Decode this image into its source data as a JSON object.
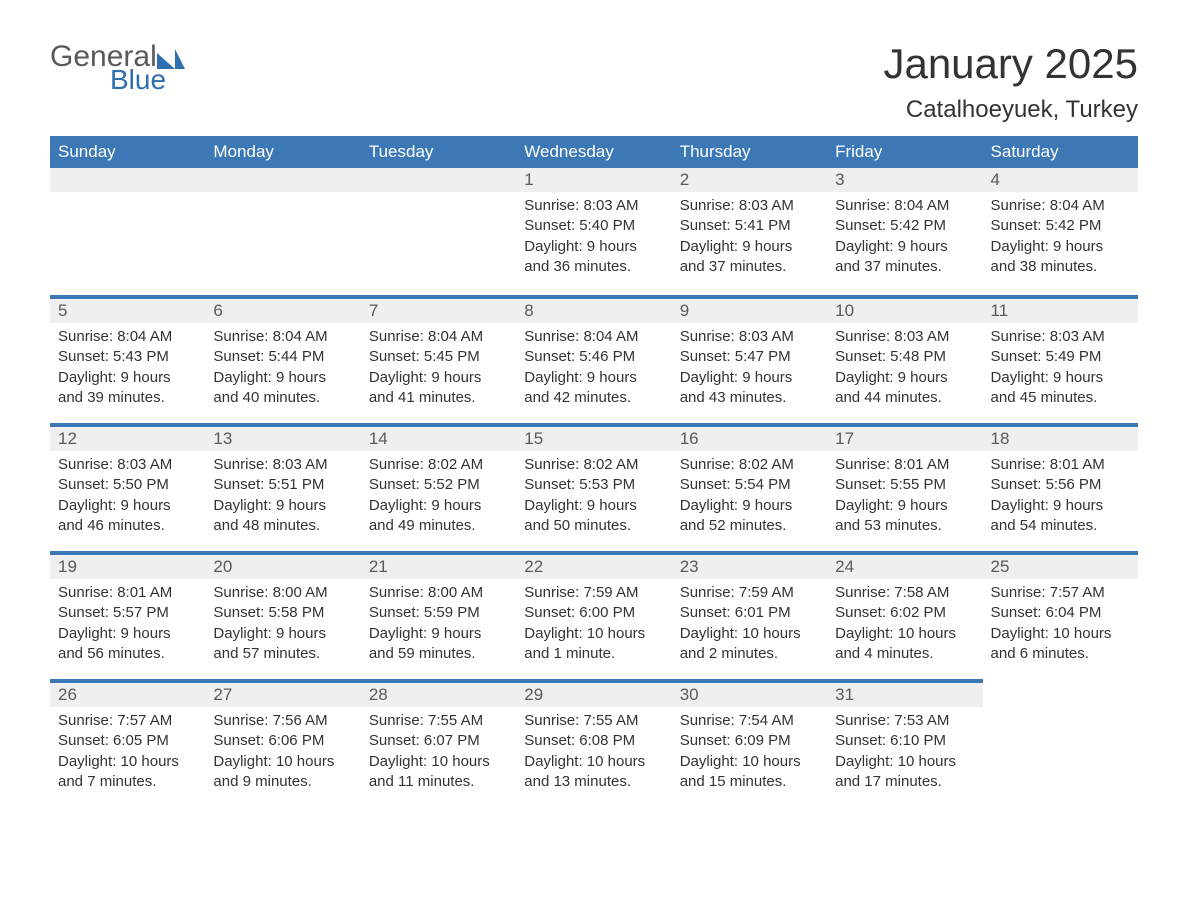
{
  "logo": {
    "text1": "General",
    "text2": "Blue",
    "shape_color": "#2f6fb0",
    "text1_color": "#5a5a5a"
  },
  "title": "January 2025",
  "location": "Catalhoeyuek, Turkey",
  "colors": {
    "header_bg": "#3b78b5",
    "header_text": "#ffffff",
    "row_border": "#3b78b5",
    "daynum_bg": "#efefef",
    "daynum_text": "#5a5a5a",
    "body_text": "#333333",
    "page_bg": "#ffffff"
  },
  "typography": {
    "title_fontsize": 42,
    "location_fontsize": 24,
    "header_fontsize": 17,
    "daynum_fontsize": 17,
    "body_fontsize": 15,
    "font_family": "Arial"
  },
  "layout": {
    "columns": 7,
    "rows": 5,
    "first_weekday": "Sunday"
  },
  "weekdays": [
    "Sunday",
    "Monday",
    "Tuesday",
    "Wednesday",
    "Thursday",
    "Friday",
    "Saturday"
  ],
  "weeks": [
    [
      null,
      null,
      null,
      {
        "n": "1",
        "sr": "Sunrise: 8:03 AM",
        "ss": "Sunset: 5:40 PM",
        "dl": "Daylight: 9 hours and 36 minutes."
      },
      {
        "n": "2",
        "sr": "Sunrise: 8:03 AM",
        "ss": "Sunset: 5:41 PM",
        "dl": "Daylight: 9 hours and 37 minutes."
      },
      {
        "n": "3",
        "sr": "Sunrise: 8:04 AM",
        "ss": "Sunset: 5:42 PM",
        "dl": "Daylight: 9 hours and 37 minutes."
      },
      {
        "n": "4",
        "sr": "Sunrise: 8:04 AM",
        "ss": "Sunset: 5:42 PM",
        "dl": "Daylight: 9 hours and 38 minutes."
      }
    ],
    [
      {
        "n": "5",
        "sr": "Sunrise: 8:04 AM",
        "ss": "Sunset: 5:43 PM",
        "dl": "Daylight: 9 hours and 39 minutes."
      },
      {
        "n": "6",
        "sr": "Sunrise: 8:04 AM",
        "ss": "Sunset: 5:44 PM",
        "dl": "Daylight: 9 hours and 40 minutes."
      },
      {
        "n": "7",
        "sr": "Sunrise: 8:04 AM",
        "ss": "Sunset: 5:45 PM",
        "dl": "Daylight: 9 hours and 41 minutes."
      },
      {
        "n": "8",
        "sr": "Sunrise: 8:04 AM",
        "ss": "Sunset: 5:46 PM",
        "dl": "Daylight: 9 hours and 42 minutes."
      },
      {
        "n": "9",
        "sr": "Sunrise: 8:03 AM",
        "ss": "Sunset: 5:47 PM",
        "dl": "Daylight: 9 hours and 43 minutes."
      },
      {
        "n": "10",
        "sr": "Sunrise: 8:03 AM",
        "ss": "Sunset: 5:48 PM",
        "dl": "Daylight: 9 hours and 44 minutes."
      },
      {
        "n": "11",
        "sr": "Sunrise: 8:03 AM",
        "ss": "Sunset: 5:49 PM",
        "dl": "Daylight: 9 hours and 45 minutes."
      }
    ],
    [
      {
        "n": "12",
        "sr": "Sunrise: 8:03 AM",
        "ss": "Sunset: 5:50 PM",
        "dl": "Daylight: 9 hours and 46 minutes."
      },
      {
        "n": "13",
        "sr": "Sunrise: 8:03 AM",
        "ss": "Sunset: 5:51 PM",
        "dl": "Daylight: 9 hours and 48 minutes."
      },
      {
        "n": "14",
        "sr": "Sunrise: 8:02 AM",
        "ss": "Sunset: 5:52 PM",
        "dl": "Daylight: 9 hours and 49 minutes."
      },
      {
        "n": "15",
        "sr": "Sunrise: 8:02 AM",
        "ss": "Sunset: 5:53 PM",
        "dl": "Daylight: 9 hours and 50 minutes."
      },
      {
        "n": "16",
        "sr": "Sunrise: 8:02 AM",
        "ss": "Sunset: 5:54 PM",
        "dl": "Daylight: 9 hours and 52 minutes."
      },
      {
        "n": "17",
        "sr": "Sunrise: 8:01 AM",
        "ss": "Sunset: 5:55 PM",
        "dl": "Daylight: 9 hours and 53 minutes."
      },
      {
        "n": "18",
        "sr": "Sunrise: 8:01 AM",
        "ss": "Sunset: 5:56 PM",
        "dl": "Daylight: 9 hours and 54 minutes."
      }
    ],
    [
      {
        "n": "19",
        "sr": "Sunrise: 8:01 AM",
        "ss": "Sunset: 5:57 PM",
        "dl": "Daylight: 9 hours and 56 minutes."
      },
      {
        "n": "20",
        "sr": "Sunrise: 8:00 AM",
        "ss": "Sunset: 5:58 PM",
        "dl": "Daylight: 9 hours and 57 minutes."
      },
      {
        "n": "21",
        "sr": "Sunrise: 8:00 AM",
        "ss": "Sunset: 5:59 PM",
        "dl": "Daylight: 9 hours and 59 minutes."
      },
      {
        "n": "22",
        "sr": "Sunrise: 7:59 AM",
        "ss": "Sunset: 6:00 PM",
        "dl": "Daylight: 10 hours and 1 minute."
      },
      {
        "n": "23",
        "sr": "Sunrise: 7:59 AM",
        "ss": "Sunset: 6:01 PM",
        "dl": "Daylight: 10 hours and 2 minutes."
      },
      {
        "n": "24",
        "sr": "Sunrise: 7:58 AM",
        "ss": "Sunset: 6:02 PM",
        "dl": "Daylight: 10 hours and 4 minutes."
      },
      {
        "n": "25",
        "sr": "Sunrise: 7:57 AM",
        "ss": "Sunset: 6:04 PM",
        "dl": "Daylight: 10 hours and 6 minutes."
      }
    ],
    [
      {
        "n": "26",
        "sr": "Sunrise: 7:57 AM",
        "ss": "Sunset: 6:05 PM",
        "dl": "Daylight: 10 hours and 7 minutes."
      },
      {
        "n": "27",
        "sr": "Sunrise: 7:56 AM",
        "ss": "Sunset: 6:06 PM",
        "dl": "Daylight: 10 hours and 9 minutes."
      },
      {
        "n": "28",
        "sr": "Sunrise: 7:55 AM",
        "ss": "Sunset: 6:07 PM",
        "dl": "Daylight: 10 hours and 11 minutes."
      },
      {
        "n": "29",
        "sr": "Sunrise: 7:55 AM",
        "ss": "Sunset: 6:08 PM",
        "dl": "Daylight: 10 hours and 13 minutes."
      },
      {
        "n": "30",
        "sr": "Sunrise: 7:54 AM",
        "ss": "Sunset: 6:09 PM",
        "dl": "Daylight: 10 hours and 15 minutes."
      },
      {
        "n": "31",
        "sr": "Sunrise: 7:53 AM",
        "ss": "Sunset: 6:10 PM",
        "dl": "Daylight: 10 hours and 17 minutes."
      },
      null
    ]
  ]
}
